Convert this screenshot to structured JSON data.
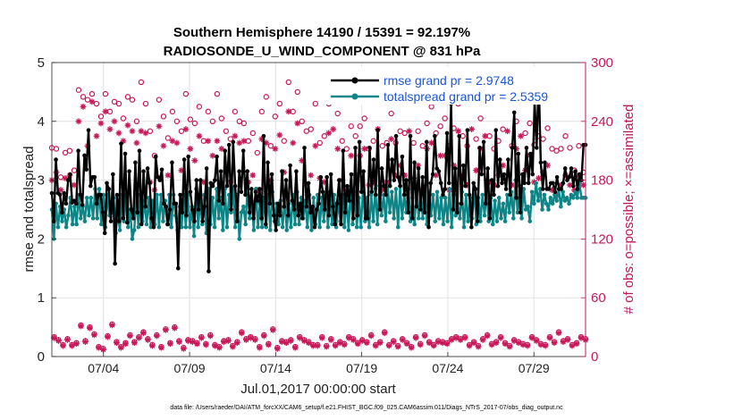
{
  "chart_data": {
    "type": "line",
    "title": "Southern Hemisphere 14190 / 15391 = 92.197%",
    "subtitle": "RADIOSONDE_U_WIND_COMPONENT @ 831 hPa",
    "xlabel": "Jul.01,2017 00:00:00 start",
    "ylabel_left": "rmse and totalspread",
    "ylabel_right": "# of obs: o=possible; ×=assimilated",
    "x_ticks": [
      "07/04",
      "07/09",
      "07/14",
      "07/19",
      "07/24",
      "07/29"
    ],
    "x_tick_days": [
      4,
      9,
      14,
      19,
      24,
      29
    ],
    "xlim_days": [
      1,
      32
    ],
    "ylim_left": [
      0,
      5
    ],
    "ylim_right": [
      0,
      300
    ],
    "y_ticks_left": [
      "0",
      "1",
      "2",
      "3",
      "4",
      "5"
    ],
    "y_ticks_right": [
      "0",
      "60",
      "120",
      "180",
      "240",
      "300"
    ],
    "grid": true,
    "legend_position": "top-right",
    "footer": "data file: /Users/raeder/DAI/ATM_forcXX/CAM6_setup/f.e21.FHIST_BGC.f09_025.CAM6assim.011/Diags_NTrS_2017-07/obs_diag_output.nc",
    "series": [
      {
        "name": "rmse grand pr = 2.9748",
        "axis": "left",
        "color": "#000000",
        "values": [
          2.78,
          2.3,
          3.35,
          2.78,
          2.75,
          2.45,
          2.78,
          2.6,
          3.0,
          3.1,
          2.62,
          2.65,
          2.6,
          3.5,
          2.75,
          2.58,
          3.42,
          3.18,
          3.85,
          2.9,
          3.05,
          3.05,
          2.6,
          2.75,
          2.75,
          2.45,
          2.1,
          2.95,
          2.85,
          2.3,
          3.1,
          1.58,
          2.75,
          2.3,
          3.62,
          2.35,
          3.45,
          2.28,
          3.15,
          2.5,
          2.35,
          3.3,
          2.45,
          3.5,
          2.25,
          3.15,
          2.55,
          3.2,
          2.95,
          2.35,
          2.2,
          3.4,
          3.05,
          3.0,
          3.18,
          2.6,
          2.55,
          2.25,
          2.5,
          3.3,
          2.6,
          2.6,
          1.5,
          2.75,
          2.45,
          3.35,
          2.4,
          3.4,
          2.8,
          2.5,
          2.3,
          3.0,
          2.5,
          3.0,
          2.3,
          2.55,
          3.2,
          1.45,
          2.95,
          2.9,
          3.0,
          3.4,
          2.65,
          3.15,
          2.6,
          3.5,
          2.9,
          3.6,
          2.5,
          3.65,
          2.9,
          2.3,
          3.15,
          2.8,
          3.5,
          2.75,
          3.15,
          2.45,
          2.85,
          2.35,
          2.8,
          2.65,
          2.85,
          2.35,
          3.75,
          2.25,
          3.3,
          2.6,
          3.1,
          2.4,
          2.15,
          2.6,
          2.4,
          3.15,
          2.55,
          3.0,
          2.4,
          3.25,
          2.65,
          2.5,
          3.15,
          2.4,
          2.6,
          2.35,
          3.55,
          2.55,
          2.95,
          2.45,
          2.55,
          2.2,
          2.5,
          2.6,
          3.05,
          2.8,
          2.5,
          3.05,
          2.4,
          3.1,
          2.55,
          2.25,
          2.6,
          3.0,
          2.25,
          3.5,
          2.45,
          2.9,
          2.65,
          3.1,
          2.35,
          3.55,
          2.4,
          3.65,
          2.8,
          3.15,
          2.35,
          2.35,
          3.55,
          2.8,
          3.35,
          2.75,
          3.85,
          2.5,
          3.2,
          2.9,
          2.75,
          3.6,
          2.9,
          3.35,
          3.0,
          3.75,
          3.05,
          2.9,
          3.4,
          2.75,
          3.0,
          2.45,
          3.75,
          2.35,
          3.3,
          2.55,
          3.2,
          2.5,
          3.05,
          2.45,
          3.65,
          2.2,
          2.95,
          3.1,
          3.75,
          3.2,
          3.15,
          2.95,
          2.75,
          2.85,
          3.8,
          2.95,
          4.3,
          2.5,
          3.2,
          2.45,
          3.75,
          2.6,
          3.25,
          2.9,
          3.85,
          2.75,
          2.2,
          2.95,
          2.85,
          2.3,
          3.55,
          3.1,
          3.65,
          2.6,
          3.2,
          2.35,
          3.0,
          2.75,
          3.85,
          2.9,
          3.35,
          2.95,
          3.1,
          2.85,
          3.35,
          2.75,
          3.55,
          4.15,
          2.7,
          3.45,
          2.45,
          3.1,
          2.95,
          3.55,
          2.95,
          3.45,
          3.1,
          4.35,
          3.55,
          4.75,
          3.3,
          2.85,
          3.3,
          2.85,
          2.85,
          2.95,
          2.95,
          2.8,
          3.05,
          2.85,
          2.85,
          2.95,
          3.2,
          3.0,
          3.05,
          3.2,
          2.9,
          3.15,
          2.85,
          3.1,
          3.0,
          3.6,
          3.6
        ]
      },
      {
        "name": "totalspread grand pr = 2.5359",
        "axis": "left",
        "color": "#0e8586",
        "values": [
          2.5,
          2.0,
          2.6,
          2.2,
          2.55,
          2.3,
          2.5,
          2.2,
          2.4,
          2.7,
          2.25,
          2.55,
          2.25,
          2.75,
          2.35,
          2.55,
          2.3,
          2.7,
          2.4,
          2.7,
          2.35,
          2.85,
          2.35,
          2.85,
          2.25,
          2.75,
          2.2,
          2.75,
          2.4,
          2.45,
          2.7,
          2.1,
          2.45,
          2.15,
          2.75,
          2.3,
          2.75,
          2.2,
          2.5,
          2.0,
          2.15,
          2.75,
          2.2,
          2.75,
          2.3,
          2.65,
          2.25,
          2.7,
          2.2,
          2.65,
          2.25,
          2.75,
          2.2,
          2.75,
          2.3,
          2.65,
          2.25,
          2.75,
          2.2,
          2.75,
          2.4,
          2.15,
          2.55,
          2.2,
          2.75,
          2.2,
          2.75,
          2.2,
          2.55,
          2.05,
          2.85,
          2.2,
          2.65,
          2.25,
          2.75,
          2.1,
          2.85,
          2.25,
          2.7,
          2.2,
          2.85,
          2.35,
          2.7,
          2.15,
          2.85,
          2.2,
          2.75,
          2.45,
          2.85,
          2.2,
          2.75,
          2.0,
          2.45,
          2.55,
          2.25,
          2.9,
          2.35,
          2.65,
          2.15,
          2.85,
          2.2,
          2.6,
          2.2,
          2.7,
          2.2,
          2.75,
          2.15,
          2.8,
          2.3,
          2.6,
          2.25,
          2.65,
          2.2,
          2.7,
          2.15,
          2.6,
          2.2,
          2.75,
          2.25,
          2.8,
          2.25,
          2.7,
          2.35,
          2.65,
          2.2,
          2.75,
          2.15,
          2.7,
          2.25,
          2.75,
          2.2,
          2.7,
          2.3,
          2.75,
          2.2,
          2.8,
          2.25,
          2.75,
          2.2,
          2.65,
          2.3,
          2.75,
          2.2,
          2.7,
          2.15,
          2.85,
          2.25,
          2.8,
          2.2,
          2.7,
          2.2,
          2.85,
          2.3,
          2.7,
          2.2,
          2.75,
          2.3,
          2.85,
          2.25,
          2.9,
          2.4,
          2.75,
          2.3,
          2.9,
          2.45,
          2.8,
          2.35,
          2.85,
          2.2,
          2.9,
          2.35,
          2.75,
          2.45,
          2.85,
          2.3,
          2.7,
          2.25,
          2.85,
          2.35,
          2.8,
          2.35,
          2.9,
          2.25,
          2.8,
          2.4,
          2.75,
          2.3,
          2.8,
          2.35,
          2.7,
          2.25,
          2.7,
          2.3,
          2.85,
          2.2,
          2.75,
          2.4,
          2.6,
          2.35,
          2.8,
          2.2,
          2.75,
          2.3,
          2.7,
          2.35,
          2.85,
          2.25,
          2.7,
          2.3,
          2.75,
          2.4,
          2.8,
          2.3,
          2.7,
          2.25,
          2.65,
          2.3,
          2.7,
          2.35,
          2.6,
          2.3,
          2.75,
          2.45,
          2.8,
          2.35,
          3.0,
          2.45,
          2.9,
          2.35,
          2.85,
          2.5,
          2.55,
          2.3,
          2.8,
          2.6,
          2.95,
          2.65,
          2.85,
          2.5,
          2.75,
          2.6,
          2.5,
          2.7,
          2.6,
          2.75,
          2.65,
          2.85,
          2.55,
          2.8,
          2.65,
          2.7,
          2.6,
          2.75,
          2.7,
          2.8,
          2.7,
          2.95,
          2.7,
          2.7,
          2.7
        ]
      },
      {
        "name": "possible",
        "axis": "right",
        "marker": "o",
        "color": "#c8185a",
        "values": [
          213,
          20,
          212,
          17,
          183,
          12,
          208,
          18,
          210,
          12,
          190,
          14,
          272,
          32,
          265,
          16,
          262,
          30,
          268,
          23,
          258,
          10,
          245,
          8,
          268,
          21,
          250,
          33,
          260,
          15,
          258,
          10,
          243,
          14,
          265,
          22,
          262,
          15,
          240,
          20,
          280,
          25,
          258,
          18,
          230,
          12,
          205,
          22,
          262,
          10,
          245,
          28,
          223,
          14,
          250,
          30,
          240,
          16,
          230,
          9,
          268,
          17,
          242,
          16,
          238,
          14,
          255,
          20,
          220,
          13,
          250,
          22,
          240,
          12,
          268,
          10,
          243,
          16,
          230,
          17,
          222,
          11,
          250,
          15,
          240,
          25,
          238,
          18,
          220,
          20,
          228,
          18,
          208,
          10,
          250,
          22,
          265,
          13,
          215,
          28,
          245,
          9,
          258,
          16,
          220,
          15,
          280,
          17,
          250,
          10,
          270,
          20,
          240,
          17,
          230,
          15,
          232,
          12,
          258,
          12,
          218,
          20,
          225,
          11,
          258,
          18,
          268,
          12,
          248,
          15,
          220,
          13,
          212,
          20,
          235,
          18,
          225,
          14,
          235,
          17,
          243,
          15,
          212,
          22,
          220,
          12,
          272,
          15,
          215,
          25,
          218,
          12,
          248,
          16,
          218,
          11,
          230,
          18,
          228,
          14,
          262,
          10,
          218,
          20,
          230,
          13,
          215,
          22,
          238,
          15,
          255,
          12,
          228,
          16,
          235,
          15,
          243,
          14,
          215,
          18,
          233,
          20,
          258,
          18,
          225,
          20,
          215,
          12,
          268,
          15,
          222,
          11,
          243,
          18,
          262,
          22,
          225,
          13,
          212,
          15,
          220,
          20,
          232,
          14,
          270,
          11,
          215,
          17,
          240,
          15,
          265,
          13,
          228,
          12,
          238,
          20,
          216,
          17,
          225,
          13,
          222,
          12,
          233,
          20,
          212,
          15,
          210,
          25,
          212,
          16,
          225,
          18,
          213,
          12,
          190,
          14,
          215,
          20,
          188,
          18
        ]
      },
      {
        "name": "assimilated",
        "axis": "right",
        "marker": "x",
        "color": "#c8185a",
        "values": [
          180,
          19,
          188,
          16,
          170,
          11,
          182,
          17,
          185,
          11,
          175,
          13,
          240,
          31,
          255,
          15,
          215,
          29,
          260,
          22,
          225,
          9,
          238,
          7,
          250,
          20,
          232,
          32,
          240,
          14,
          228,
          9,
          220,
          13,
          236,
          21,
          230,
          14,
          218,
          19,
          230,
          24,
          228,
          17,
          178,
          11,
          170,
          21,
          235,
          9,
          215,
          27,
          185,
          13,
          220,
          29,
          218,
          15,
          190,
          8,
          232,
          16,
          212,
          15,
          200,
          13,
          225,
          19,
          178,
          12,
          220,
          21,
          205,
          11,
          220,
          9,
          212,
          15,
          190,
          16,
          178,
          10,
          225,
          14,
          218,
          24,
          220,
          17,
          178,
          19,
          185,
          17,
          170,
          9,
          222,
          21,
          218,
          12,
          180,
          27,
          212,
          8,
          226,
          15,
          188,
          14,
          250,
          16,
          218,
          9,
          238,
          19,
          200,
          16,
          176,
          14,
          185,
          11,
          215,
          11,
          182,
          19,
          178,
          10,
          228,
          17,
          232,
          11,
          212,
          14,
          180,
          12,
          170,
          19,
          205,
          17,
          185,
          13,
          205,
          16,
          212,
          14,
          175,
          21,
          178,
          11,
          232,
          14,
          170,
          24,
          178,
          11,
          222,
          15,
          185,
          10,
          195,
          17,
          185,
          13,
          230,
          9,
          182,
          19,
          195,
          12,
          170,
          21,
          212,
          14,
          218,
          11,
          185,
          15,
          205,
          14,
          205,
          13,
          170,
          17,
          195,
          19,
          230,
          17,
          185,
          19,
          175,
          11,
          232,
          14,
          190,
          10,
          212,
          17,
          225,
          21,
          178,
          12,
          175,
          14,
          185,
          19,
          195,
          13,
          230,
          10,
          175,
          16,
          212,
          14,
          225,
          12,
          190,
          11,
          205,
          19,
          178,
          16,
          182,
          12,
          188,
          11,
          195,
          19,
          170,
          14,
          165,
          24,
          175,
          15,
          185,
          17,
          175,
          11,
          170,
          13,
          185,
          19,
          175,
          17
        ]
      }
    ]
  }
}
